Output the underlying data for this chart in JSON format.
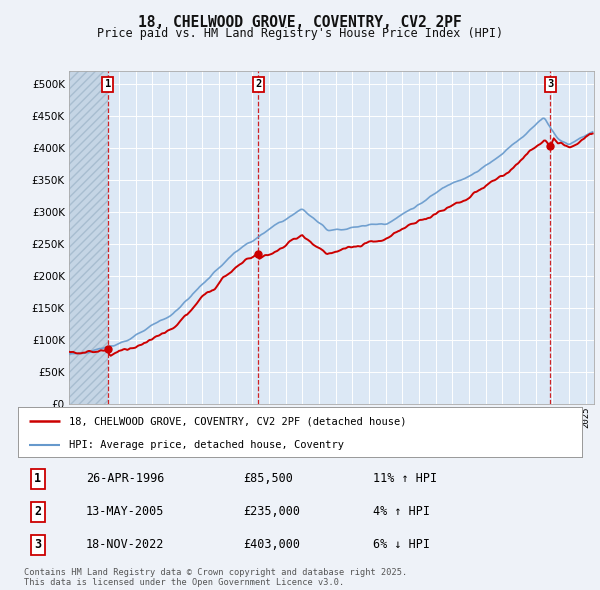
{
  "title": "18, CHELWOOD GROVE, COVENTRY, CV2 2PF",
  "subtitle": "Price paid vs. HM Land Registry's House Price Index (HPI)",
  "background_color": "#eef2f8",
  "plot_bg_color": "#dce8f5",
  "ylim": [
    0,
    520000
  ],
  "yticks": [
    0,
    50000,
    100000,
    150000,
    200000,
    250000,
    300000,
    350000,
    400000,
    450000,
    500000
  ],
  "xlim_start": 1994,
  "xlim_end": 2025.5,
  "transactions": [
    {
      "year": 1996.32,
      "price": 85500,
      "label": "1"
    },
    {
      "year": 2005.36,
      "price": 235000,
      "label": "2"
    },
    {
      "year": 2022.88,
      "price": 403000,
      "label": "3"
    }
  ],
  "legend_entries": [
    {
      "label": "18, CHELWOOD GROVE, COVENTRY, CV2 2PF (detached house)",
      "color": "#cc0000",
      "lw": 1.8
    },
    {
      "label": "HPI: Average price, detached house, Coventry",
      "color": "#6699cc",
      "lw": 1.5
    }
  ],
  "table_rows": [
    {
      "num": "1",
      "date": "26-APR-1996",
      "price": "£85,500",
      "hpi": "11% ↑ HPI"
    },
    {
      "num": "2",
      "date": "13-MAY-2005",
      "price": "£235,000",
      "hpi": "4% ↑ HPI"
    },
    {
      "num": "3",
      "date": "18-NOV-2022",
      "price": "£403,000",
      "hpi": "6% ↓ HPI"
    }
  ],
  "footer": "Contains HM Land Registry data © Crown copyright and database right 2025.\nThis data is licensed under the Open Government Licence v3.0.",
  "grid_color": "#ffffff",
  "dashed_line_color": "#cc0000"
}
